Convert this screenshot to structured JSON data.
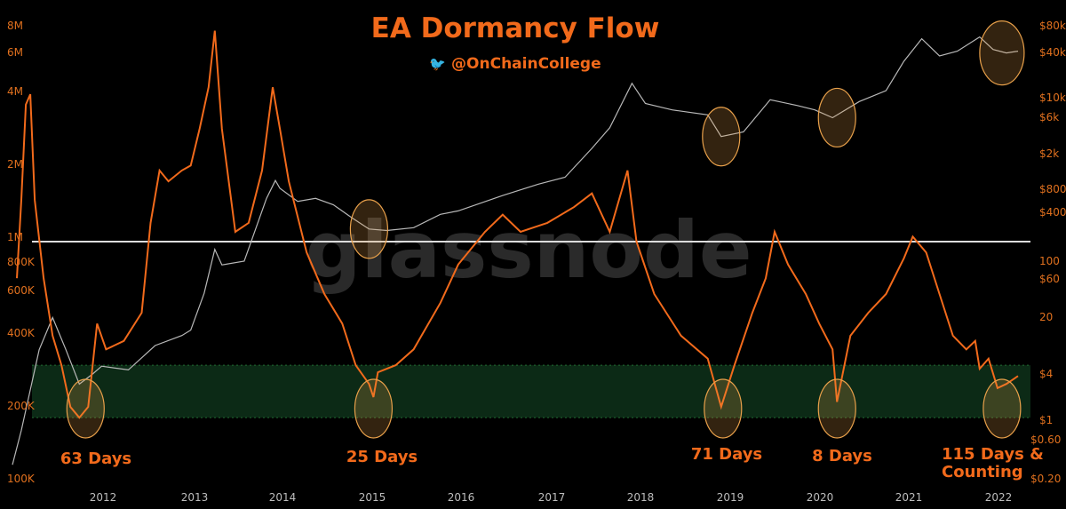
{
  "title": "EA Dormancy Flow",
  "handle": "@OnChainCollege",
  "watermark": "glassnode",
  "colors": {
    "dormancy": "#f26a1b",
    "price": "#b8b8b8",
    "band_fill": "#0c2a16",
    "band_edge": "#1f6a32",
    "threshold": "#dcdcdc",
    "circle": "#e8a04a"
  },
  "chart_data": {
    "type": "line",
    "title": "EA Dormancy Flow",
    "x_ticks": [
      "2012",
      "2013",
      "2014",
      "2015",
      "2016",
      "2017",
      "2018",
      "2019",
      "2020",
      "2021",
      "2022"
    ],
    "y_left": {
      "scale": "log",
      "ticks": [
        "8M",
        "6M",
        "4M",
        "2M",
        "1M",
        "800K",
        "600K",
        "400K",
        "200K",
        "100K"
      ]
    },
    "y_right": {
      "scale": "log",
      "ticks": [
        "$80k",
        "$40k",
        "$10k",
        "$6k",
        "$2k",
        "$800",
        "$400",
        "100",
        "$60",
        "20",
        "$4",
        "$1",
        "$0.60",
        "$0.20"
      ]
    },
    "threshold_line": 1000000,
    "buy_zone": [
      180000,
      300000
    ],
    "series": [
      {
        "role": "dormancy_flow",
        "points": [
          [
            2011.05,
            700000
          ],
          [
            2011.1,
            1500000
          ],
          [
            2011.15,
            3800000
          ],
          [
            2011.2,
            4200000
          ],
          [
            2011.25,
            1500000
          ],
          [
            2011.35,
            700000
          ],
          [
            2011.45,
            400000
          ],
          [
            2011.55,
            300000
          ],
          [
            2011.65,
            200000
          ],
          [
            2011.75,
            180000
          ],
          [
            2011.85,
            200000
          ],
          [
            2011.95,
            450000
          ],
          [
            2012.05,
            350000
          ],
          [
            2012.25,
            380000
          ],
          [
            2012.45,
            500000
          ],
          [
            2012.55,
            1200000
          ],
          [
            2012.65,
            2000000
          ],
          [
            2012.75,
            1800000
          ],
          [
            2012.9,
            2000000
          ],
          [
            2013.0,
            2100000
          ],
          [
            2013.1,
            3000000
          ],
          [
            2013.2,
            4500000
          ],
          [
            2013.27,
            7800000
          ],
          [
            2013.35,
            3000000
          ],
          [
            2013.5,
            1100000
          ],
          [
            2013.65,
            1200000
          ],
          [
            2013.8,
            2000000
          ],
          [
            2013.92,
            4500000
          ],
          [
            2014.0,
            3000000
          ],
          [
            2014.1,
            1800000
          ],
          [
            2014.3,
            900000
          ],
          [
            2014.5,
            600000
          ],
          [
            2014.7,
            450000
          ],
          [
            2014.85,
            300000
          ],
          [
            2015.0,
            250000
          ],
          [
            2015.05,
            220000
          ],
          [
            2015.1,
            280000
          ],
          [
            2015.3,
            300000
          ],
          [
            2015.5,
            350000
          ],
          [
            2015.8,
            550000
          ],
          [
            2016.0,
            800000
          ],
          [
            2016.3,
            1100000
          ],
          [
            2016.5,
            1300000
          ],
          [
            2016.7,
            1100000
          ],
          [
            2017.0,
            1200000
          ],
          [
            2017.3,
            1400000
          ],
          [
            2017.5,
            1600000
          ],
          [
            2017.7,
            1100000
          ],
          [
            2017.9,
            2000000
          ],
          [
            2018.0,
            1000000
          ],
          [
            2018.2,
            600000
          ],
          [
            2018.5,
            400000
          ],
          [
            2018.8,
            320000
          ],
          [
            2018.95,
            200000
          ],
          [
            2019.1,
            300000
          ],
          [
            2019.3,
            500000
          ],
          [
            2019.45,
            700000
          ],
          [
            2019.55,
            1100000
          ],
          [
            2019.7,
            800000
          ],
          [
            2019.9,
            600000
          ],
          [
            2020.05,
            450000
          ],
          [
            2020.2,
            350000
          ],
          [
            2020.25,
            210000
          ],
          [
            2020.4,
            400000
          ],
          [
            2020.6,
            500000
          ],
          [
            2020.8,
            600000
          ],
          [
            2021.0,
            850000
          ],
          [
            2021.1,
            1050000
          ],
          [
            2021.25,
            900000
          ],
          [
            2021.4,
            600000
          ],
          [
            2021.55,
            400000
          ],
          [
            2021.7,
            350000
          ],
          [
            2021.8,
            380000
          ],
          [
            2021.85,
            290000
          ],
          [
            2021.95,
            320000
          ],
          [
            2022.05,
            240000
          ],
          [
            2022.15,
            250000
          ],
          [
            2022.28,
            270000
          ]
        ]
      },
      {
        "role": "price",
        "points": [
          [
            2011.0,
            0.3
          ],
          [
            2011.1,
            0.8
          ],
          [
            2011.3,
            8
          ],
          [
            2011.45,
            20
          ],
          [
            2011.6,
            8
          ],
          [
            2011.75,
            3
          ],
          [
            2011.9,
            4
          ],
          [
            2012.0,
            5
          ],
          [
            2012.3,
            4.5
          ],
          [
            2012.6,
            9
          ],
          [
            2012.9,
            12
          ],
          [
            2013.0,
            14
          ],
          [
            2013.15,
            40
          ],
          [
            2013.27,
            140
          ],
          [
            2013.35,
            90
          ],
          [
            2013.6,
            100
          ],
          [
            2013.85,
            600
          ],
          [
            2013.95,
            1000
          ],
          [
            2014.0,
            800
          ],
          [
            2014.2,
            550
          ],
          [
            2014.4,
            600
          ],
          [
            2014.6,
            500
          ],
          [
            2014.8,
            350
          ],
          [
            2015.0,
            250
          ],
          [
            2015.2,
            240
          ],
          [
            2015.5,
            260
          ],
          [
            2015.8,
            380
          ],
          [
            2016.0,
            420
          ],
          [
            2016.5,
            650
          ],
          [
            2016.9,
            900
          ],
          [
            2017.2,
            1100
          ],
          [
            2017.5,
            2500
          ],
          [
            2017.7,
            4500
          ],
          [
            2017.95,
            16000
          ],
          [
            2018.1,
            9000
          ],
          [
            2018.4,
            7500
          ],
          [
            2018.8,
            6500
          ],
          [
            2018.95,
            3500
          ],
          [
            2019.2,
            4000
          ],
          [
            2019.5,
            10000
          ],
          [
            2019.8,
            8500
          ],
          [
            2020.0,
            7500
          ],
          [
            2020.2,
            6000
          ],
          [
            2020.5,
            9500
          ],
          [
            2020.8,
            13000
          ],
          [
            2021.0,
            30000
          ],
          [
            2021.2,
            57000
          ],
          [
            2021.4,
            35000
          ],
          [
            2021.6,
            40000
          ],
          [
            2021.85,
            60000
          ],
          [
            2022.0,
            42000
          ],
          [
            2022.15,
            38000
          ],
          [
            2022.28,
            40000
          ]
        ]
      }
    ],
    "annotations": [
      {
        "year": 2011.82,
        "label": "63 Days"
      },
      {
        "year": 2015.05,
        "label": "25 Days"
      },
      {
        "year": 2018.97,
        "label": "71 Days"
      },
      {
        "year": 2020.25,
        "label": "8 Days"
      },
      {
        "year": 2022.1,
        "label": "115 Days & Counting"
      }
    ],
    "price_circles": [
      2015.0,
      2018.95,
      2020.25,
      2022.1
    ]
  },
  "annotations_text": {
    "a1": "63 Days",
    "a2": "25 Days",
    "a3": "71 Days",
    "a4": "8 Days",
    "a5_line1": "115 Days &",
    "a5_line2": "Counting"
  }
}
